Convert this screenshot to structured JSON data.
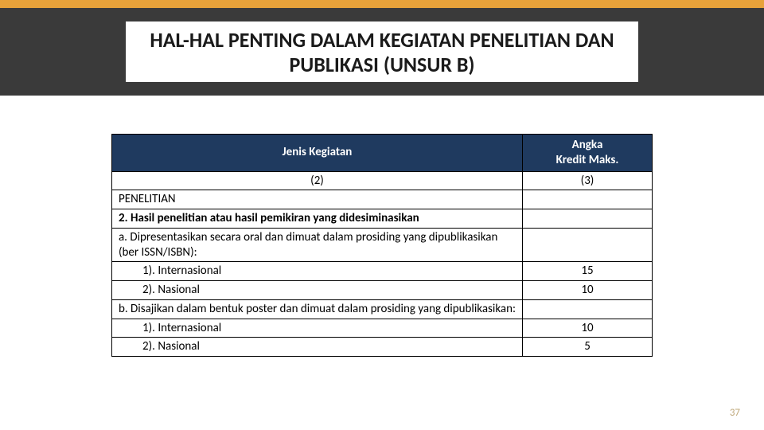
{
  "colors": {
    "orange_bar": "#e8a23a",
    "chalkboard": "#3a3a3a",
    "header_bg": "#1f3a5f",
    "header_fg": "#ffffff",
    "page_num": "#bfa87a",
    "border": "#000000",
    "bg": "#ffffff"
  },
  "title": {
    "line1": "HAL-HAL PENTING DALAM KEGIATAN PENELITIAN DAN",
    "line2": "PUBLIKASI (UNSUR B)"
  },
  "table": {
    "header": {
      "col1": "Jenis Kegiatan",
      "col2_line1": "Angka",
      "col2_line2": "Kredit Maks."
    },
    "subheader": {
      "col1": "(2)",
      "col2": "(3)"
    },
    "rows": [
      {
        "text": "PENELITIAN",
        "value": "",
        "indent": 0,
        "bold": false
      },
      {
        "text": "2. Hasil penelitian atau hasil pemikiran yang didesiminasikan",
        "value": "",
        "indent": 0,
        "bold": true
      },
      {
        "text": "a. Dipresentasikan secara oral dan dimuat dalam prosiding yang dipublikasikan (ber ISSN/ISBN):",
        "value": "",
        "indent": 0,
        "bold": false
      },
      {
        "text": "1). Internasional",
        "value": "15",
        "indent": 2,
        "bold": false
      },
      {
        "text": "2). Nasional",
        "value": "10",
        "indent": 2,
        "bold": false
      },
      {
        "text": "b. Disajikan dalam bentuk poster dan dimuat dalam prosiding yang dipublikasikan:",
        "value": "",
        "indent": 0,
        "bold": false
      },
      {
        "text": "1). Internasional",
        "value": "10",
        "indent": 2,
        "bold": false
      },
      {
        "text": "2). Nasional",
        "value": "5",
        "indent": 2,
        "bold": false
      }
    ]
  },
  "page_number": "37"
}
